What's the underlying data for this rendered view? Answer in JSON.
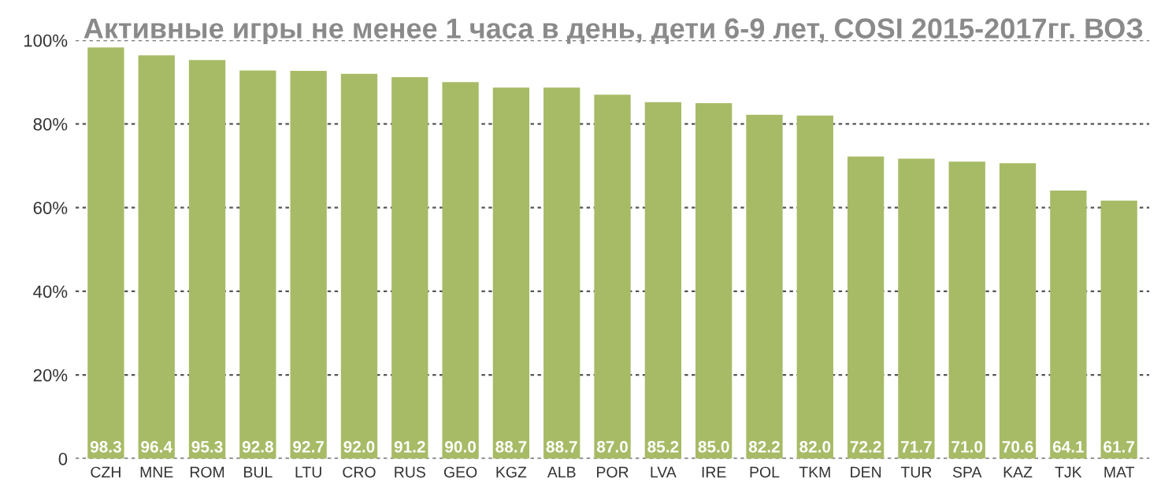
{
  "chart_data": {
    "type": "bar",
    "title": "Активные игры не менее 1 часа в день, дети 6-9 лет, COSI 2015-2017гг. ВОЗ",
    "categories": [
      "CZH",
      "MNE",
      "ROM",
      "BUL",
      "LTU",
      "CRO",
      "RUS",
      "GEO",
      "KGZ",
      "ALB",
      "POR",
      "LVA",
      "IRE",
      "POL",
      "TKM",
      "DEN",
      "TUR",
      "SPA",
      "KAZ",
      "TJK",
      "MAT"
    ],
    "values": [
      98.3,
      96.4,
      95.3,
      92.8,
      92.7,
      92.0,
      91.2,
      90.0,
      88.7,
      88.7,
      87.0,
      85.2,
      85.0,
      82.2,
      82.0,
      72.2,
      71.7,
      71.0,
      70.6,
      64.1,
      61.7
    ],
    "color": "#a7bb66",
    "ylim": [
      0,
      100
    ],
    "yticks": [
      0,
      {
        "value": 20,
        "label": "20%"
      },
      {
        "value": 40,
        "label": "40%"
      },
      {
        "value": 60,
        "label": "60%"
      },
      {
        "value": 80,
        "label": "80%"
      },
      {
        "value": 100,
        "label": "100%"
      }
    ],
    "value_labels": [
      "98.3",
      "96.4",
      "95.3",
      "92.8",
      "92.7",
      "92.0",
      "91.2",
      "90.0",
      "88.7",
      "88.7",
      "87.0",
      "85.2",
      "85.0",
      "82.2",
      "82.0",
      "72.2",
      "71.7",
      "71.0",
      "70.6",
      "64.1",
      "61.7"
    ],
    "grid": "y"
  }
}
